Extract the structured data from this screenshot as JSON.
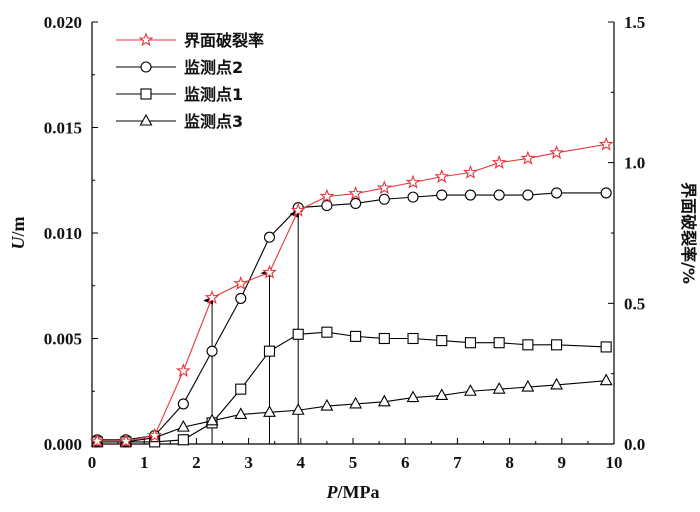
{
  "chart_data": {
    "type": "line",
    "title": "",
    "x_axis": {
      "label_italic": "P",
      "label_rest": "/MPa",
      "lim": [
        0,
        10
      ],
      "ticks": [
        0,
        1,
        2,
        3,
        4,
        5,
        6,
        7,
        8,
        9,
        10
      ],
      "tick_labels": [
        "0",
        "1",
        "2",
        "3",
        "4",
        "5",
        "6",
        "7",
        "8",
        "9",
        "10"
      ]
    },
    "y_axis_left": {
      "label_italic": "U",
      "label_rest": "/m",
      "lim": [
        0,
        0.02
      ],
      "ticks": [
        0,
        0.005,
        0.01,
        0.015,
        0.02
      ],
      "tick_labels": [
        "0.000",
        "0.005",
        "0.010",
        "0.015",
        "0.020"
      ]
    },
    "y_axis_right": {
      "label": "界面破裂率/%",
      "lim": [
        0,
        1.5
      ],
      "ticks": [
        0,
        0.5,
        1.0,
        1.5
      ],
      "tick_labels": [
        "0.0",
        "0.5",
        "1.0",
        "1.5"
      ]
    },
    "legend_position": "top-left",
    "grid": false,
    "series": [
      {
        "name": "界面破裂率",
        "axis": "right",
        "marker": "star",
        "color": "#e8343a",
        "x": [
          0.1,
          0.65,
          1.2,
          1.75,
          2.3,
          2.85,
          3.4,
          3.95,
          4.5,
          5.05,
          5.6,
          6.15,
          6.7,
          7.25,
          7.8,
          8.35,
          8.9,
          9.85
        ],
        "y": [
          0.01,
          0.01,
          0.03,
          0.26,
          0.52,
          0.57,
          0.61,
          0.83,
          0.88,
          0.89,
          0.91,
          0.93,
          0.95,
          0.965,
          1.0,
          1.015,
          1.035,
          1.065
        ]
      },
      {
        "name": "监测点2",
        "axis": "left",
        "marker": "circle",
        "color": "#000000",
        "x": [
          0.1,
          0.65,
          1.2,
          1.75,
          2.3,
          2.85,
          3.4,
          3.95,
          4.5,
          5.05,
          5.6,
          6.15,
          6.7,
          7.25,
          7.8,
          8.35,
          8.9,
          9.85
        ],
        "y": [
          0.0002,
          0.0002,
          0.0004,
          0.0019,
          0.0044,
          0.0069,
          0.0098,
          0.0112,
          0.0113,
          0.0114,
          0.0116,
          0.0117,
          0.0118,
          0.0118,
          0.0118,
          0.0118,
          0.0119,
          0.0119
        ]
      },
      {
        "name": "监测点1",
        "axis": "left",
        "marker": "square",
        "color": "#000000",
        "x": [
          0.1,
          0.65,
          1.2,
          1.75,
          2.3,
          2.85,
          3.4,
          3.95,
          4.5,
          5.05,
          5.6,
          6.15,
          6.7,
          7.25,
          7.8,
          8.35,
          8.9,
          9.85
        ],
        "y": [
          0.0001,
          0.0001,
          0.0001,
          0.0002,
          0.001,
          0.0026,
          0.0044,
          0.0052,
          0.0053,
          0.0051,
          0.005,
          0.005,
          0.0049,
          0.0048,
          0.0048,
          0.0047,
          0.0047,
          0.0046
        ]
      },
      {
        "name": "监测点3",
        "axis": "left",
        "marker": "triangle",
        "color": "#000000",
        "x": [
          0.1,
          0.65,
          1.2,
          1.75,
          2.3,
          2.85,
          3.4,
          3.95,
          4.5,
          5.05,
          5.6,
          6.15,
          6.7,
          7.25,
          7.8,
          8.35,
          8.9,
          9.85
        ],
        "y": [
          0.0001,
          0.0001,
          0.0003,
          0.0008,
          0.0011,
          0.0014,
          0.0015,
          0.0016,
          0.0018,
          0.0019,
          0.002,
          0.0022,
          0.0023,
          0.0025,
          0.0026,
          0.0027,
          0.0028,
          0.003
        ]
      }
    ],
    "annotations": [
      {
        "type": "arrow",
        "x": 2.3,
        "y_from": 0,
        "y_to": 0.0068
      },
      {
        "type": "arrow",
        "x": 3.4,
        "y_from": 0,
        "y_to": 0.0081
      },
      {
        "type": "arrow",
        "x": 3.95,
        "y_from": 0,
        "y_to": 0.0109
      }
    ]
  }
}
